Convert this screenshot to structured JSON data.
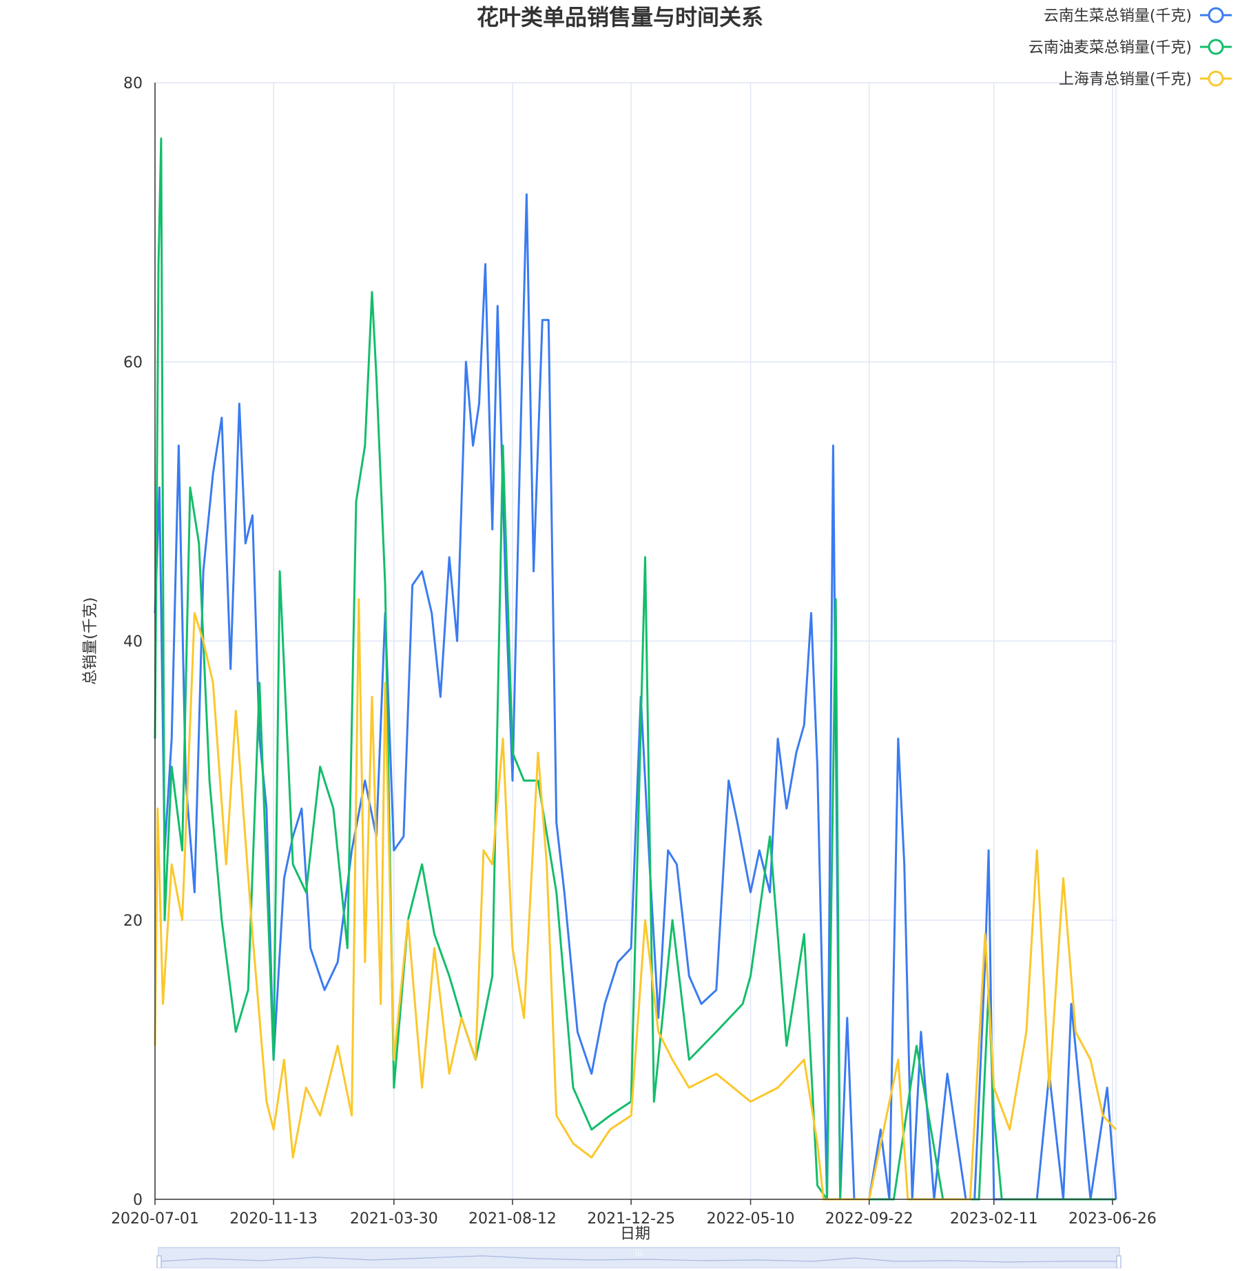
{
  "chart_data": {
    "type": "line",
    "title": "花叶类单品销售量与时间关系",
    "xlabel": "日期",
    "ylabel": "总销量(千克)",
    "ylim": [
      0,
      80
    ],
    "y_ticks": [
      "0",
      "20",
      "40",
      "60",
      "80"
    ],
    "x_range": [
      "2020-07-01",
      "2023-06-30"
    ],
    "x_ticks": [
      "2020-07-01",
      "2020-11-13",
      "2021-03-30",
      "2021-08-12",
      "2021-12-25",
      "2022-05-10",
      "2022-09-22",
      "2023-02-11",
      "2023-06-26"
    ],
    "grid": true,
    "legend_position": "top-right",
    "series": [
      {
        "name": "云南生菜总销量(千克)",
        "color": "#3a7bf0",
        "points": [
          [
            "2020-07-01",
            42
          ],
          [
            "2020-07-06",
            51
          ],
          [
            "2020-07-12",
            25
          ],
          [
            "2020-07-20",
            33
          ],
          [
            "2020-07-28",
            54
          ],
          [
            "2020-08-05",
            30
          ],
          [
            "2020-08-15",
            22
          ],
          [
            "2020-08-25",
            45
          ],
          [
            "2020-09-05",
            52
          ],
          [
            "2020-09-15",
            56
          ],
          [
            "2020-09-25",
            38
          ],
          [
            "2020-10-05",
            57
          ],
          [
            "2020-10-12",
            47
          ],
          [
            "2020-10-20",
            49
          ],
          [
            "2020-10-28",
            33
          ],
          [
            "2020-11-05",
            28
          ],
          [
            "2020-11-13",
            10
          ],
          [
            "2020-11-25",
            23
          ],
          [
            "2020-12-05",
            26
          ],
          [
            "2020-12-15",
            28
          ],
          [
            "2020-12-25",
            18
          ],
          [
            "2021-01-10",
            15
          ],
          [
            "2021-01-25",
            17
          ],
          [
            "2021-02-10",
            25
          ],
          [
            "2021-02-25",
            30
          ],
          [
            "2021-03-10",
            26
          ],
          [
            "2021-03-20",
            42
          ],
          [
            "2021-03-30",
            25
          ],
          [
            "2021-04-10",
            26
          ],
          [
            "2021-04-20",
            44
          ],
          [
            "2021-05-01",
            45
          ],
          [
            "2021-05-12",
            42
          ],
          [
            "2021-05-22",
            36
          ],
          [
            "2021-06-01",
            46
          ],
          [
            "2021-06-10",
            40
          ],
          [
            "2021-06-20",
            60
          ],
          [
            "2021-06-28",
            54
          ],
          [
            "2021-07-05",
            57
          ],
          [
            "2021-07-12",
            67
          ],
          [
            "2021-07-20",
            48
          ],
          [
            "2021-07-26",
            64
          ],
          [
            "2021-08-05",
            42
          ],
          [
            "2021-08-12",
            30
          ],
          [
            "2021-08-20",
            52
          ],
          [
            "2021-08-28",
            72
          ],
          [
            "2021-09-05",
            45
          ],
          [
            "2021-09-15",
            63
          ],
          [
            "2021-09-22",
            63
          ],
          [
            "2021-10-01",
            27
          ],
          [
            "2021-10-10",
            22
          ],
          [
            "2021-10-25",
            12
          ],
          [
            "2021-11-10",
            9
          ],
          [
            "2021-11-25",
            14
          ],
          [
            "2021-12-10",
            17
          ],
          [
            "2021-12-25",
            18
          ],
          [
            "2022-01-05",
            36
          ],
          [
            "2022-01-15",
            24
          ],
          [
            "2022-01-25",
            13
          ],
          [
            "2022-02-05",
            25
          ],
          [
            "2022-02-15",
            24
          ],
          [
            "2022-03-01",
            16
          ],
          [
            "2022-03-15",
            14
          ],
          [
            "2022-04-01",
            15
          ],
          [
            "2022-04-15",
            30
          ],
          [
            "2022-04-25",
            27
          ],
          [
            "2022-05-10",
            22
          ],
          [
            "2022-05-20",
            25
          ],
          [
            "2022-06-01",
            22
          ],
          [
            "2022-06-10",
            33
          ],
          [
            "2022-06-20",
            28
          ],
          [
            "2022-07-01",
            32
          ],
          [
            "2022-07-10",
            34
          ],
          [
            "2022-07-18",
            42
          ],
          [
            "2022-07-25",
            31
          ],
          [
            "2022-08-05",
            0
          ],
          [
            "2022-08-12",
            54
          ],
          [
            "2022-08-20",
            0
          ],
          [
            "2022-08-28",
            13
          ],
          [
            "2022-09-05",
            0
          ],
          [
            "2022-09-22",
            0
          ],
          [
            "2022-10-05",
            5
          ],
          [
            "2022-10-15",
            0
          ],
          [
            "2022-10-25",
            33
          ],
          [
            "2022-11-01",
            24
          ],
          [
            "2022-11-10",
            0
          ],
          [
            "2022-11-20",
            12
          ],
          [
            "2022-12-05",
            0
          ],
          [
            "2022-12-20",
            9
          ],
          [
            "2023-01-10",
            0
          ],
          [
            "2023-01-20",
            0
          ],
          [
            "2023-02-01",
            17
          ],
          [
            "2023-02-05",
            25
          ],
          [
            "2023-02-11",
            0
          ],
          [
            "2023-03-01",
            0
          ],
          [
            "2023-04-01",
            0
          ],
          [
            "2023-04-15",
            9
          ],
          [
            "2023-05-01",
            0
          ],
          [
            "2023-05-10",
            14
          ],
          [
            "2023-06-01",
            0
          ],
          [
            "2023-06-20",
            8
          ],
          [
            "2023-06-30",
            0
          ]
        ]
      },
      {
        "name": "云南油麦菜总销量(千克)",
        "color": "#12bd6a",
        "points": [
          [
            "2020-07-01",
            33
          ],
          [
            "2020-07-05",
            67
          ],
          [
            "2020-07-08",
            76
          ],
          [
            "2020-07-12",
            20
          ],
          [
            "2020-07-20",
            31
          ],
          [
            "2020-08-01",
            25
          ],
          [
            "2020-08-10",
            51
          ],
          [
            "2020-08-20",
            47
          ],
          [
            "2020-09-01",
            30
          ],
          [
            "2020-09-15",
            20
          ],
          [
            "2020-10-01",
            12
          ],
          [
            "2020-10-15",
            15
          ],
          [
            "2020-10-28",
            37
          ],
          [
            "2020-11-13",
            10
          ],
          [
            "2020-11-20",
            45
          ],
          [
            "2020-12-05",
            24
          ],
          [
            "2020-12-20",
            22
          ],
          [
            "2021-01-05",
            31
          ],
          [
            "2021-01-20",
            28
          ],
          [
            "2021-02-05",
            18
          ],
          [
            "2021-02-15",
            50
          ],
          [
            "2021-02-25",
            54
          ],
          [
            "2021-03-05",
            65
          ],
          [
            "2021-03-10",
            59
          ],
          [
            "2021-03-20",
            44
          ],
          [
            "2021-03-30",
            8
          ],
          [
            "2021-04-15",
            20
          ],
          [
            "2021-05-01",
            24
          ],
          [
            "2021-05-15",
            19
          ],
          [
            "2021-06-01",
            16
          ],
          [
            "2021-06-15",
            13
          ],
          [
            "2021-07-01",
            10
          ],
          [
            "2021-07-20",
            16
          ],
          [
            "2021-08-01",
            54
          ],
          [
            "2021-08-12",
            32
          ],
          [
            "2021-08-25",
            30
          ],
          [
            "2021-09-10",
            30
          ],
          [
            "2021-10-01",
            22
          ],
          [
            "2021-10-20",
            8
          ],
          [
            "2021-11-10",
            5
          ],
          [
            "2021-12-01",
            6
          ],
          [
            "2021-12-25",
            7
          ],
          [
            "2022-01-10",
            46
          ],
          [
            "2022-01-20",
            7
          ],
          [
            "2022-02-10",
            20
          ],
          [
            "2022-03-01",
            10
          ],
          [
            "2022-04-01",
            12
          ],
          [
            "2022-05-01",
            14
          ],
          [
            "2022-05-10",
            16
          ],
          [
            "2022-06-01",
            26
          ],
          [
            "2022-06-20",
            11
          ],
          [
            "2022-07-10",
            19
          ],
          [
            "2022-07-25",
            1
          ],
          [
            "2022-08-05",
            0
          ],
          [
            "2022-08-15",
            43
          ],
          [
            "2022-08-20",
            0
          ],
          [
            "2022-09-22",
            0
          ],
          [
            "2022-10-20",
            0
          ],
          [
            "2022-11-15",
            11
          ],
          [
            "2022-12-15",
            0
          ],
          [
            "2023-01-25",
            0
          ],
          [
            "2023-02-05",
            15
          ],
          [
            "2023-02-11",
            6
          ],
          [
            "2023-02-20",
            0
          ],
          [
            "2023-06-30",
            0
          ]
        ]
      },
      {
        "name": "上海青总销量(千克)",
        "color": "#fbc72b",
        "points": [
          [
            "2020-07-01",
            11
          ],
          [
            "2020-07-04",
            28
          ],
          [
            "2020-07-10",
            14
          ],
          [
            "2020-07-20",
            24
          ],
          [
            "2020-08-01",
            20
          ],
          [
            "2020-08-15",
            42
          ],
          [
            "2020-08-25",
            40
          ],
          [
            "2020-09-05",
            37
          ],
          [
            "2020-09-20",
            24
          ],
          [
            "2020-10-01",
            35
          ],
          [
            "2020-10-20",
            19
          ],
          [
            "2020-11-05",
            7
          ],
          [
            "2020-11-13",
            5
          ],
          [
            "2020-11-25",
            10
          ],
          [
            "2020-12-05",
            3
          ],
          [
            "2020-12-20",
            8
          ],
          [
            "2021-01-05",
            6
          ],
          [
            "2021-01-25",
            11
          ],
          [
            "2021-02-10",
            6
          ],
          [
            "2021-02-18",
            43
          ],
          [
            "2021-02-25",
            17
          ],
          [
            "2021-03-05",
            36
          ],
          [
            "2021-03-15",
            14
          ],
          [
            "2021-03-20",
            37
          ],
          [
            "2021-03-30",
            10
          ],
          [
            "2021-04-15",
            20
          ],
          [
            "2021-05-01",
            8
          ],
          [
            "2021-05-15",
            18
          ],
          [
            "2021-06-01",
            9
          ],
          [
            "2021-06-15",
            13
          ],
          [
            "2021-07-01",
            10
          ],
          [
            "2021-07-10",
            25
          ],
          [
            "2021-07-20",
            24
          ],
          [
            "2021-08-01",
            33
          ],
          [
            "2021-08-12",
            18
          ],
          [
            "2021-08-25",
            13
          ],
          [
            "2021-09-10",
            32
          ],
          [
            "2021-09-20",
            24
          ],
          [
            "2021-10-01",
            6
          ],
          [
            "2021-10-20",
            4
          ],
          [
            "2021-11-10",
            3
          ],
          [
            "2021-12-01",
            5
          ],
          [
            "2021-12-25",
            6
          ],
          [
            "2022-01-10",
            20
          ],
          [
            "2022-01-25",
            12
          ],
          [
            "2022-02-10",
            10
          ],
          [
            "2022-03-01",
            8
          ],
          [
            "2022-04-01",
            9
          ],
          [
            "2022-05-10",
            7
          ],
          [
            "2022-06-10",
            8
          ],
          [
            "2022-07-10",
            10
          ],
          [
            "2022-07-25",
            4
          ],
          [
            "2022-08-01",
            0
          ],
          [
            "2022-09-22",
            0
          ],
          [
            "2022-10-25",
            10
          ],
          [
            "2022-11-05",
            0
          ],
          [
            "2023-01-15",
            0
          ],
          [
            "2023-02-01",
            19
          ],
          [
            "2023-02-11",
            8
          ],
          [
            "2023-03-01",
            5
          ],
          [
            "2023-03-20",
            12
          ],
          [
            "2023-04-01",
            25
          ],
          [
            "2023-04-15",
            8
          ],
          [
            "2023-05-01",
            23
          ],
          [
            "2023-05-15",
            12
          ],
          [
            "2023-06-01",
            10
          ],
          [
            "2023-06-15",
            6
          ],
          [
            "2023-06-30",
            5
          ]
        ]
      }
    ]
  }
}
